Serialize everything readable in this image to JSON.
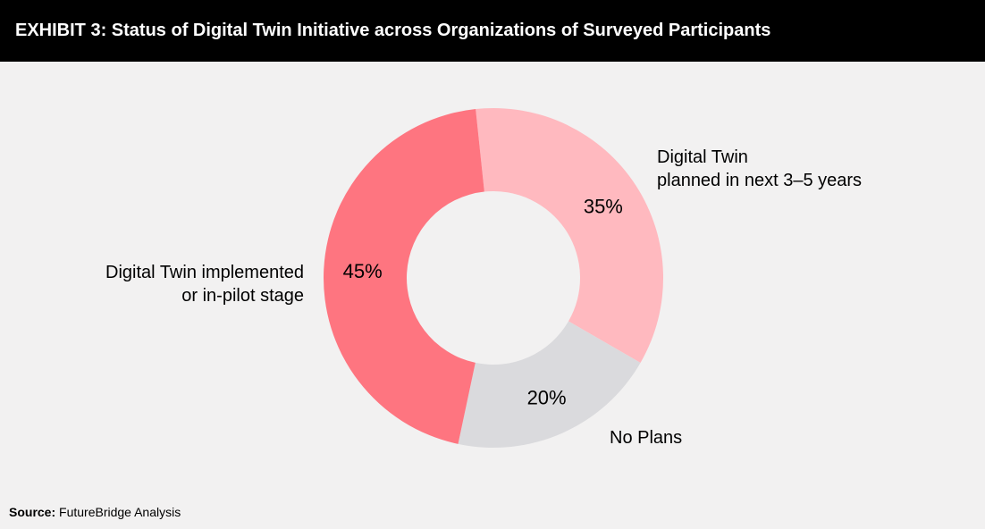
{
  "header": {
    "title": "EXHIBIT 3: Status of Digital Twin Initiative across Organizations of Surveyed Participants"
  },
  "chart_data": {
    "type": "pie",
    "title": "EXHIBIT 3: Status of Digital Twin Initiative across Organizations of Surveyed Participants",
    "slices": [
      {
        "label_lines": [
          "Digital Twin",
          "planned in next 3–5 years"
        ],
        "value": 35,
        "value_label": "35%",
        "color": "#ffb9bf"
      },
      {
        "label_lines": [
          "No Plans"
        ],
        "value": 20,
        "value_label": "20%",
        "color": "#dadadd"
      },
      {
        "label_lines": [
          "Digital Twin implemented",
          "or in-pilot stage"
        ],
        "value": 45,
        "value_label": "45%",
        "color": "#fe7580"
      }
    ],
    "donut": true
  },
  "source": {
    "label": "Source:",
    "text": "FutureBridge Analysis"
  }
}
